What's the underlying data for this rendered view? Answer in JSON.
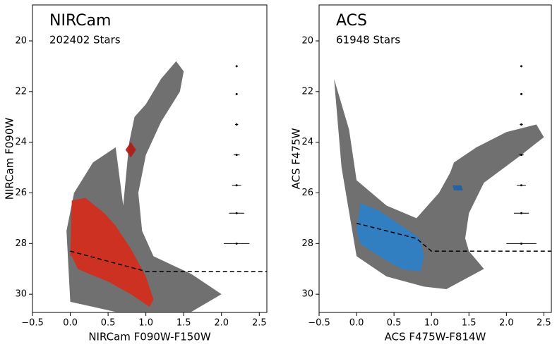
{
  "chart_data": [
    {
      "type": "scatter",
      "title": "NIRCam",
      "subtitle": "202402 Stars",
      "xlabel": "NIRCam F090W-F150W",
      "ylabel": "NIRCam F090W",
      "xlim": [
        -0.5,
        2.6
      ],
      "ylim": [
        30.72,
        18.58
      ],
      "xticks": [
        {
          "value": -0.5,
          "label": "−0.5"
        },
        {
          "value": 0,
          "label": "0.0"
        },
        0.5,
        {
          "value": 1,
          "label": "1.0"
        },
        1.5,
        {
          "value": 2,
          "label": "2.0"
        },
        2.5
      ],
      "yticks": [
        20,
        22,
        24,
        26,
        28,
        30
      ],
      "series": [
        {
          "color": "#111111",
          "style": "area",
          "x": [
            0.0,
            -0.05,
            0.05,
            0.3,
            0.6,
            0.7,
            0.78,
            0.85,
            1.0,
            1.2,
            1.4,
            1.5,
            1.45,
            1.2,
            1.0,
            0.9,
            0.95,
            1.1,
            1.6,
            2.0,
            1.6,
            0.6,
            0.0
          ],
          "y": [
            30.3,
            27.5,
            26.0,
            24.8,
            24.2,
            26.5,
            24.0,
            23.0,
            22.5,
            21.5,
            20.8,
            21.2,
            22.0,
            23.2,
            24.5,
            26.0,
            27.5,
            28.5,
            29.2,
            30.0,
            30.7,
            30.7,
            30.3
          ]
        },
        {
          "color": "#d62a1a",
          "style": "area",
          "x": [
            0.0,
            0.02,
            0.2,
            0.45,
            0.6,
            0.8,
            1.0,
            1.1,
            1.05,
            0.8,
            0.5,
            0.25,
            0.1,
            0.02
          ],
          "y": [
            28.5,
            26.3,
            26.2,
            26.8,
            27.3,
            28.2,
            29.3,
            30.2,
            30.5,
            30.0,
            29.5,
            29.2,
            29.0,
            28.5
          ]
        },
        {
          "color": "#b01a10",
          "style": "area",
          "x": [
            0.8,
            0.87,
            0.8,
            0.73
          ],
          "y": [
            24.0,
            24.3,
            24.6,
            24.3
          ]
        },
        {
          "color": "#000000",
          "style": "dashed",
          "x": [
            0.0,
            1.0,
            2.6
          ],
          "y": [
            28.3,
            29.1,
            29.1
          ]
        }
      ],
      "errorbars": {
        "x": 2.2,
        "y": [
          21,
          22.1,
          23.3,
          24.5,
          25.7,
          26.8,
          28.0
        ],
        "xerr": [
          0.01,
          0.01,
          0.02,
          0.04,
          0.06,
          0.1,
          0.17
        ]
      }
    },
    {
      "type": "scatter",
      "title": "ACS",
      "subtitle": "61948 Stars",
      "xlabel": "ACS F475W-F814W",
      "ylabel": "ACS F475W",
      "xlim": [
        -0.5,
        2.6
      ],
      "ylim": [
        30.72,
        18.58
      ],
      "xticks": [
        {
          "value": -0.5,
          "label": "−0.5"
        },
        {
          "value": 0,
          "label": "0.0"
        },
        0.5,
        {
          "value": 1,
          "label": "1.0"
        },
        1.5,
        {
          "value": 2,
          "label": "2.0"
        },
        2.5
      ],
      "yticks": [
        20,
        22,
        24,
        26,
        28,
        30
      ],
      "series": [
        {
          "color": "#111111",
          "style": "area",
          "x": [
            -0.3,
            -0.1,
            0.0,
            0.4,
            0.8,
            1.1,
            1.25,
            1.3,
            1.6,
            2.0,
            2.4,
            2.5,
            2.2,
            1.7,
            1.5,
            1.45,
            1.5,
            1.7,
            1.2,
            0.9,
            0.4,
            0.0,
            -0.2
          ],
          "y": [
            21.5,
            23.5,
            25.5,
            26.5,
            27.0,
            26.0,
            25.2,
            24.8,
            24.2,
            23.6,
            23.3,
            23.8,
            24.5,
            25.6,
            26.8,
            27.8,
            28.3,
            29.0,
            29.8,
            29.7,
            29.3,
            28.5,
            25.0
          ]
        },
        {
          "color": "#2a7fc9",
          "style": "area",
          "x": [
            0.0,
            0.05,
            0.3,
            0.6,
            0.85,
            0.9,
            0.85,
            0.6,
            0.3,
            0.05
          ],
          "y": [
            27.5,
            26.4,
            26.7,
            27.3,
            27.8,
            28.5,
            29.1,
            29.0,
            28.5,
            28.0
          ]
        },
        {
          "color": "#1f5fa8",
          "style": "area",
          "x": [
            1.28,
            1.4,
            1.42,
            1.3
          ],
          "y": [
            25.7,
            25.7,
            25.9,
            25.9
          ]
        },
        {
          "color": "#000000",
          "style": "dashed",
          "x": [
            0.0,
            0.8,
            1.0,
            2.6
          ],
          "y": [
            27.2,
            27.8,
            28.3,
            28.3
          ]
        }
      ],
      "errorbars": {
        "x": 2.2,
        "y": [
          21,
          22.1,
          23.3,
          24.5,
          25.7,
          26.8,
          28.0
        ],
        "xerr": [
          0.0,
          0.01,
          0.02,
          0.03,
          0.06,
          0.1,
          0.2
        ]
      }
    }
  ]
}
